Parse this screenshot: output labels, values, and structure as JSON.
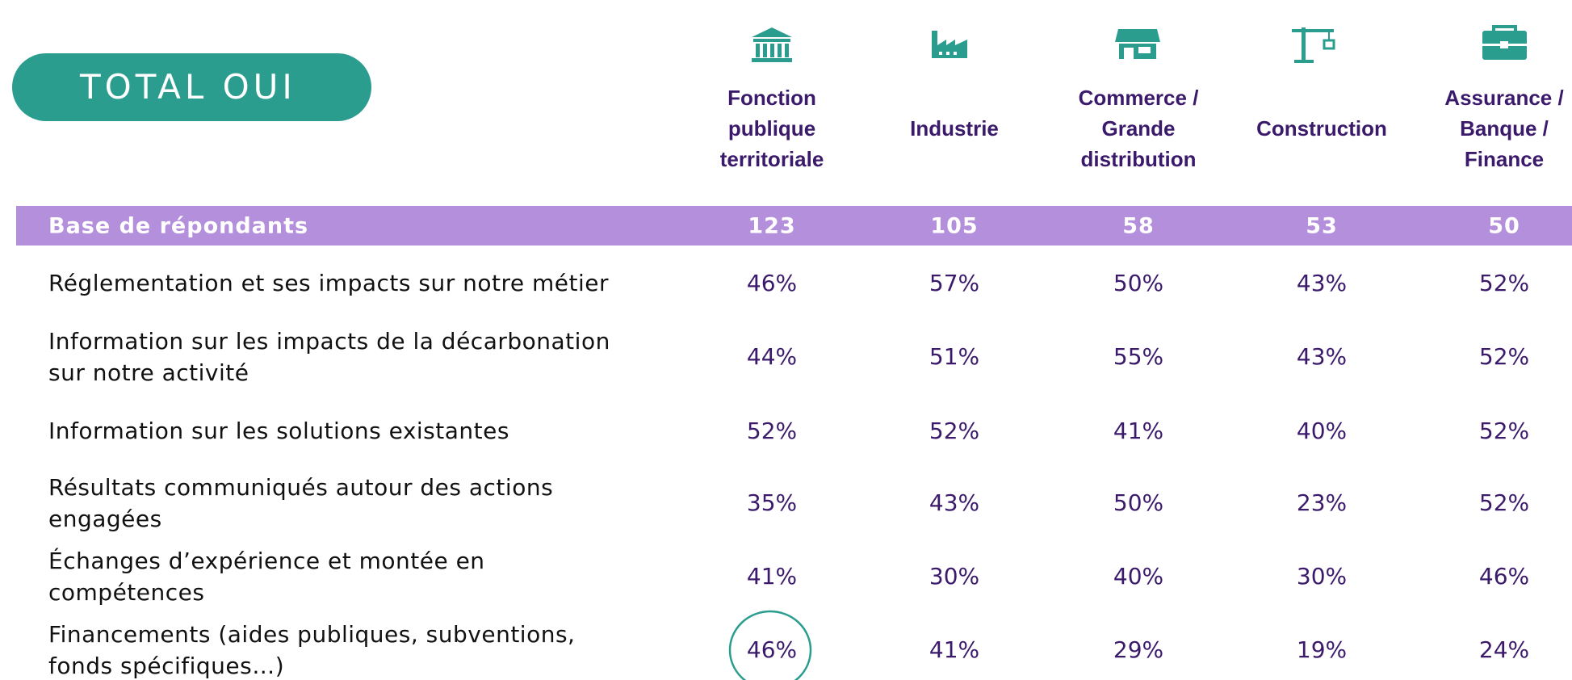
{
  "title": "TOTAL OUI",
  "columns": [
    {
      "lines": [
        "Fonction",
        "publique",
        "territoriale"
      ]
    },
    {
      "lines": [
        "Industrie"
      ]
    },
    {
      "lines": [
        "Commerce /",
        "Grande",
        "distribution"
      ]
    },
    {
      "lines": [
        "Construction"
      ]
    },
    {
      "lines": [
        "Assurance /",
        "Banque /",
        "Finance"
      ]
    }
  ],
  "base": {
    "label": "Base de répondants",
    "values": [
      123,
      105,
      58,
      53,
      50
    ]
  },
  "rows": [
    {
      "lines": [
        "Réglementation et ses impacts sur notre métier"
      ],
      "values": [
        "46%",
        "57%",
        "50%",
        "43%",
        "52%"
      ]
    },
    {
      "lines": [
        "Information sur les impacts de la décarbonation",
        "sur notre activité"
      ],
      "values": [
        "44%",
        "51%",
        "55%",
        "43%",
        "52%"
      ]
    },
    {
      "lines": [
        "Information sur les solutions existantes"
      ],
      "values": [
        "52%",
        "52%",
        "41%",
        "40%",
        "52%"
      ]
    },
    {
      "lines": [
        "Résultats communiqués autour des actions",
        "engagées"
      ],
      "values": [
        "35%",
        "43%",
        "50%",
        "23%",
        "52%"
      ]
    },
    {
      "lines": [
        "Échanges d’expérience et montée en",
        "compétences"
      ],
      "values": [
        "41%",
        "30%",
        "40%",
        "30%",
        "46%"
      ]
    },
    {
      "lines": [
        "Financements (aides publiques, subventions,",
        "fonds spécifiques…)"
      ],
      "values": [
        "46%",
        "41%",
        "29%",
        "19%",
        "24%"
      ]
    }
  ]
}
